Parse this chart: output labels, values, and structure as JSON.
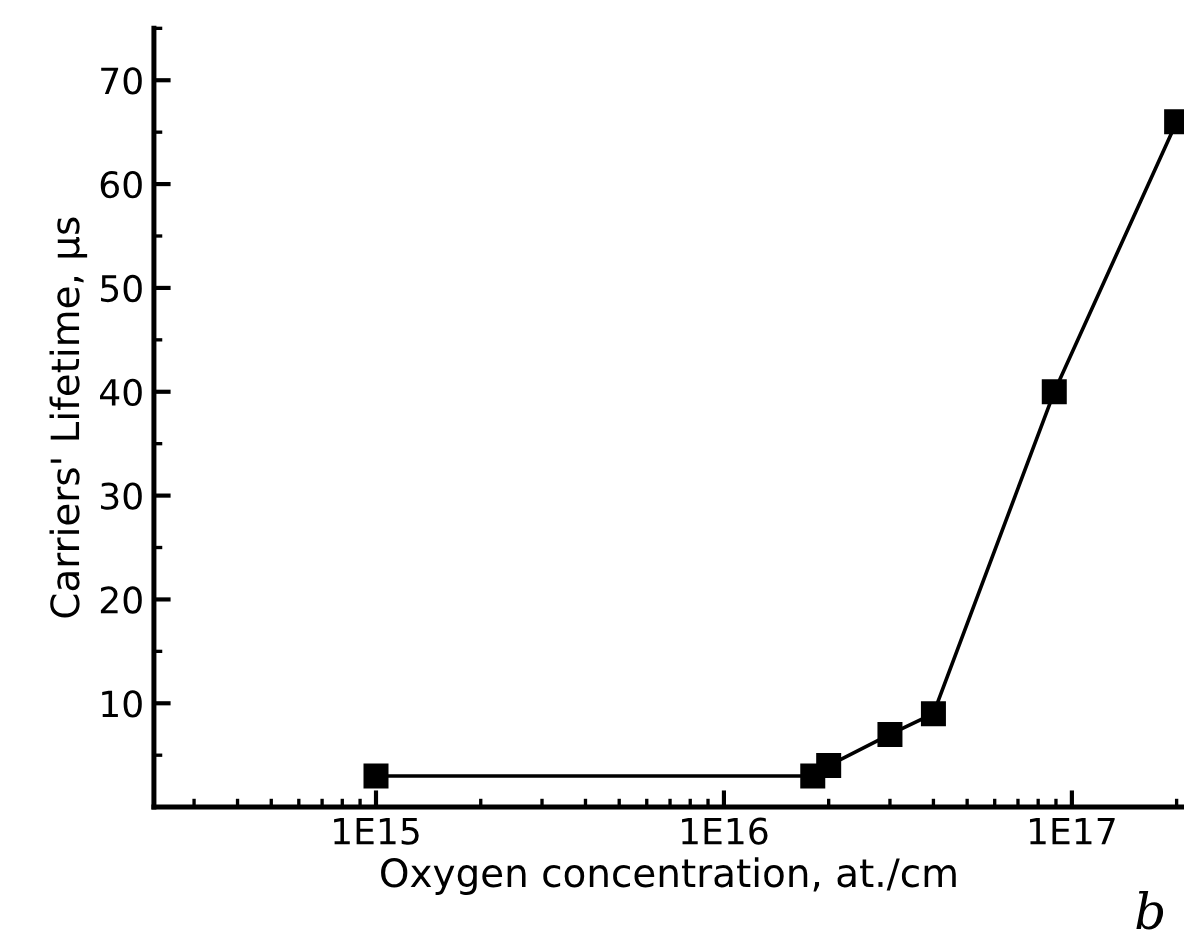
{
  "chart_data": {
    "type": "line",
    "xlabel": "Oxygen concentration, at./cm",
    "ylabel": "Carriers' Lifetime, µs",
    "annotations": [
      "b"
    ],
    "x": [
      1000000000000000.0,
      1.8e+16,
      2e+16,
      3e+16,
      4e+16,
      8.9e+16,
      2e+17
    ],
    "series": [
      {
        "color": "#000000",
        "values": [
          3,
          3,
          4,
          7,
          9,
          40,
          66
        ]
      }
    ],
    "marker": "square",
    "line_style": "solid",
    "log": "x",
    "grid": false,
    "legend": false,
    "xlim": [
      230000000000000.0,
      2.1e+17
    ],
    "xticks": [
      {
        "value": 1000000000000000.0,
        "label": "1E15"
      },
      {
        "value": 1e+16,
        "label": "1E16"
      },
      {
        "value": 1e+17,
        "label": "1E17"
      }
    ],
    "ylim": [
      0,
      75
    ],
    "yticks": [
      10,
      20,
      30,
      40,
      50,
      60,
      70
    ]
  }
}
